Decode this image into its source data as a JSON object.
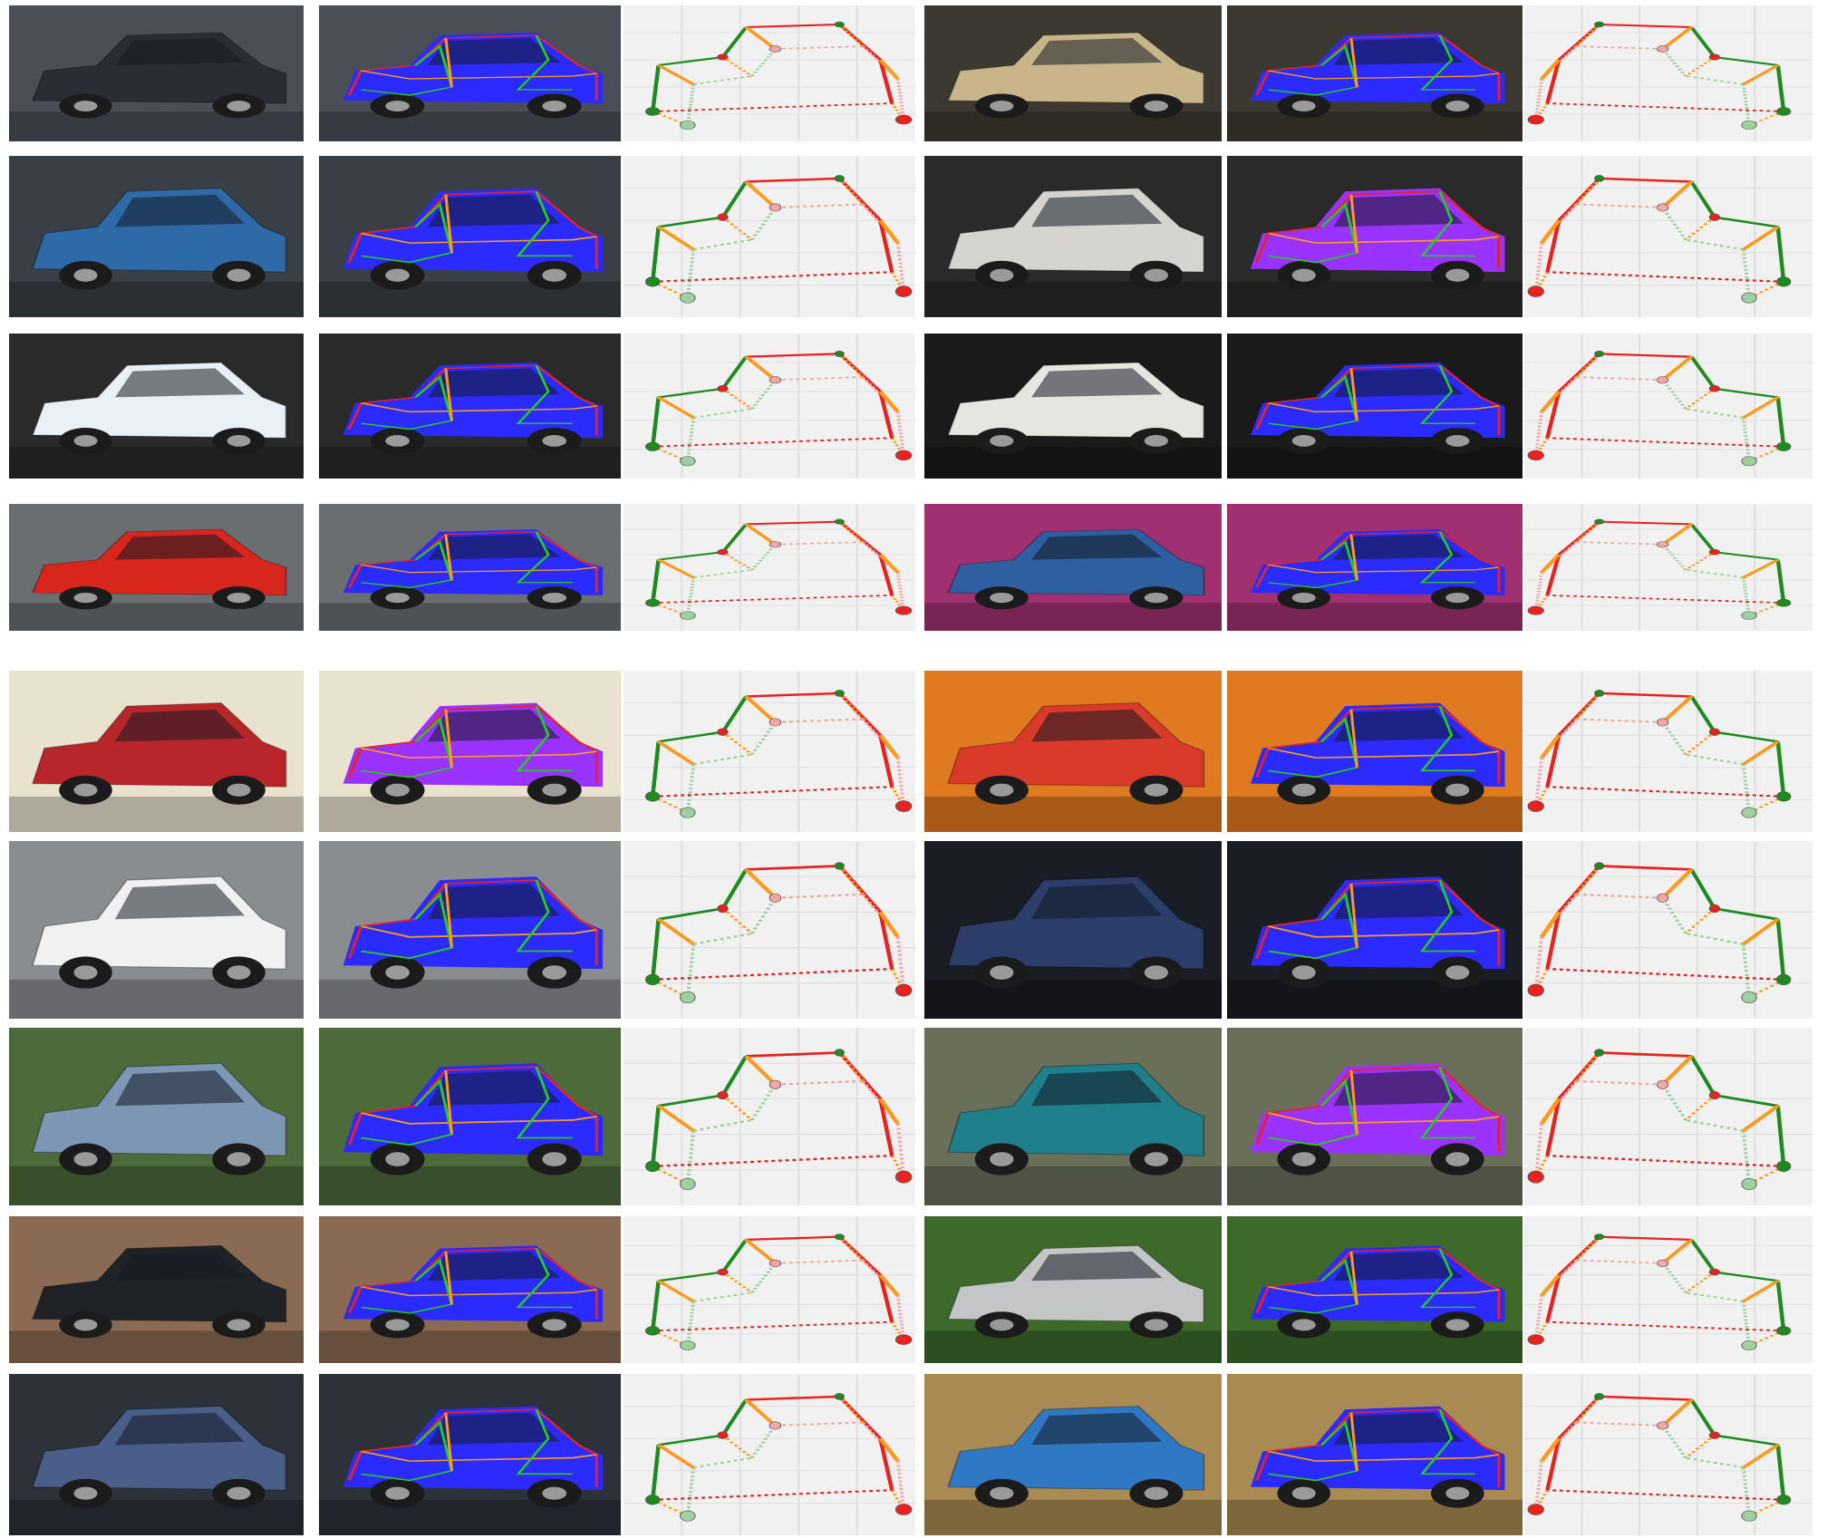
{
  "figure": {
    "columns": [
      "photo",
      "overlay",
      "keypoint_skeleton"
    ],
    "palette": {
      "overlay_fill": "#2b2bff",
      "overlay_fill_alt": "#9a33ff",
      "edge_red": "#e8231f",
      "edge_green": "#22cc22",
      "edge_orange": "#ff9a1f",
      "plot_green": "#1f8a1f",
      "plot_light_green": "#9fd09f",
      "plot_pink": "#f2a6a6",
      "plot_bg": "#f1f1f1",
      "plot_grid": "#dcdcdc"
    },
    "rows": [
      {
        "left": {
          "photo": "#2a2d33",
          "accent": "#4a4f57"
        },
        "right": {
          "photo": "#c8b68a",
          "accent": "#3c3a30"
        }
      },
      {
        "left": {
          "photo": "#2f6aa8",
          "accent": "#3a3f46"
        },
        "right": {
          "photo": "#d6d4d0",
          "accent": "#2a2a2a"
        }
      },
      {
        "left": {
          "photo": "#eaf1f6",
          "accent": "#2a2a2a"
        },
        "right": {
          "photo": "#e7e5e0",
          "accent": "#1a1a1a"
        }
      },
      {
        "left": {
          "photo": "#d8261d",
          "accent": "#6a6e70"
        },
        "right": {
          "photo": "#2e5fa0",
          "accent": "#a03070"
        }
      },
      {
        "left": {
          "photo": "#b9262a",
          "accent": "#e9e2cf"
        },
        "right": {
          "photo": "#d93a2a",
          "accent": "#e07a20"
        }
      },
      {
        "left": {
          "photo": "#f1f1f1",
          "accent": "#8a8d90"
        },
        "right": {
          "photo": "#2c3d6a",
          "accent": "#1a1d24"
        }
      },
      {
        "left": {
          "photo": "#7d96b4",
          "accent": "#4d6a3a"
        },
        "right": {
          "photo": "#1f7f8a",
          "accent": "#6a6f5a"
        }
      },
      {
        "left": {
          "photo": "#1f2328",
          "accent": "#8a6a52"
        },
        "right": {
          "photo": "#c3c5c7",
          "accent": "#3d6a2a"
        }
      },
      {
        "left": {
          "photo": "#4a5e8a",
          "accent": "#2d3138"
        },
        "right": {
          "photo": "#2f78c4",
          "accent": "#a88a52"
        }
      }
    ]
  }
}
